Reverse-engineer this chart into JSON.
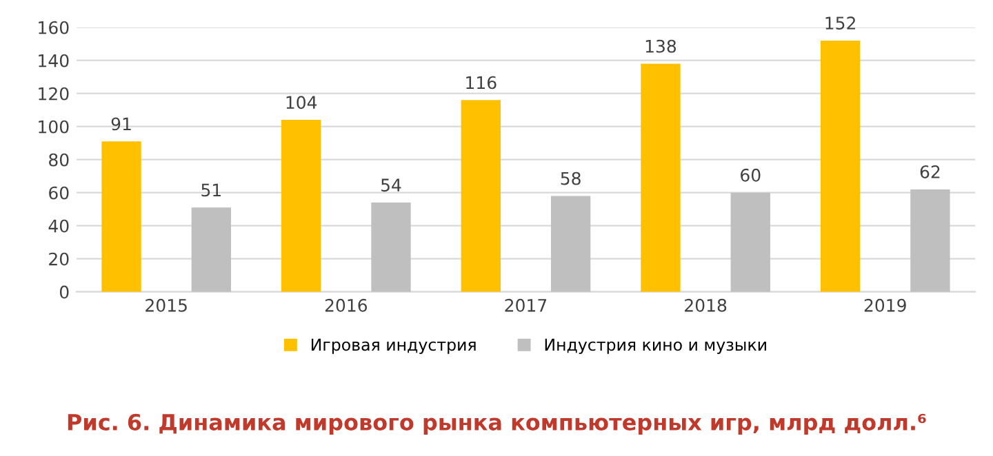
{
  "chart_data": {
    "type": "bar",
    "title": "Рис. 6. Динамика мирового рынка компьютерных игр, млрд долл.⁶",
    "categories": [
      "2015",
      "2016",
      "2017",
      "2018",
      "2019"
    ],
    "series": [
      {
        "name": "Игровая индустрия",
        "color": "#ffc000",
        "values": [
          91,
          104,
          116,
          138,
          152
        ]
      },
      {
        "name": "Индустрия кино и музыки",
        "color": "#bfbfbf",
        "values": [
          51,
          54,
          58,
          60,
          62
        ]
      }
    ],
    "ylim": [
      0,
      160
    ],
    "yticks": [
      0,
      20,
      40,
      60,
      80,
      100,
      120,
      140,
      160
    ],
    "grid": "y",
    "legend": "bottom",
    "data_labels": true
  }
}
